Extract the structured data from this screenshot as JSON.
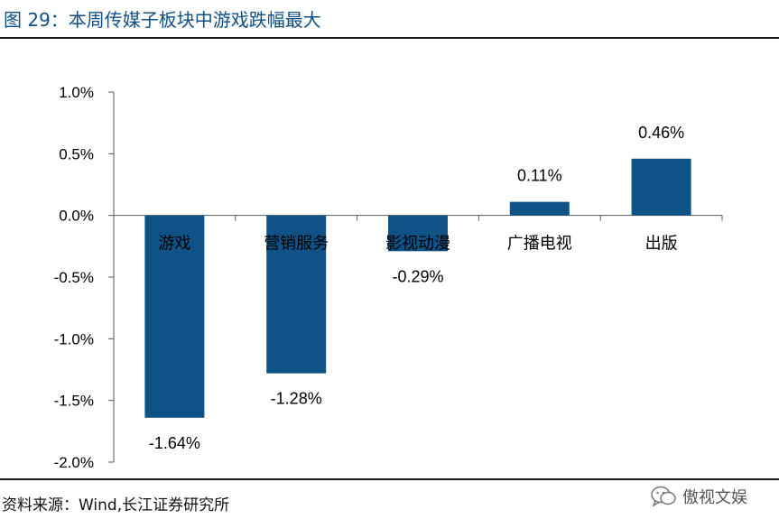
{
  "header": {
    "title": "图 29：本周传媒子板块中游戏跌幅最大"
  },
  "footer": {
    "source": "资料来源：Wind,长江证券研究所",
    "watermark": "傲视文娱",
    "watermark_icon": "wechat-icon"
  },
  "colors": {
    "bar": "#0f5285",
    "title": "#0f4f86",
    "axis": "#595959"
  },
  "chart_data": {
    "type": "bar",
    "title": "",
    "xlabel": "",
    "ylabel": "",
    "categories": [
      "游戏",
      "营销服务",
      "影视动漫",
      "广播电视",
      "出版"
    ],
    "values": [
      -1.64,
      -1.28,
      -0.29,
      0.11,
      0.46
    ],
    "value_labels": [
      "-1.64%",
      "-1.28%",
      "-0.29%",
      "0.11%",
      "0.46%"
    ],
    "yticks": [
      1.0,
      0.5,
      0.0,
      -0.5,
      -1.0,
      -1.5,
      -2.0
    ],
    "ytick_labels": [
      "1.0%",
      "0.5%",
      "0.0%",
      "-0.5%",
      "-1.0%",
      "-1.5%",
      "-2.0%"
    ],
    "ylim": [
      -2.0,
      1.0
    ],
    "grid": false,
    "legend": "none"
  }
}
